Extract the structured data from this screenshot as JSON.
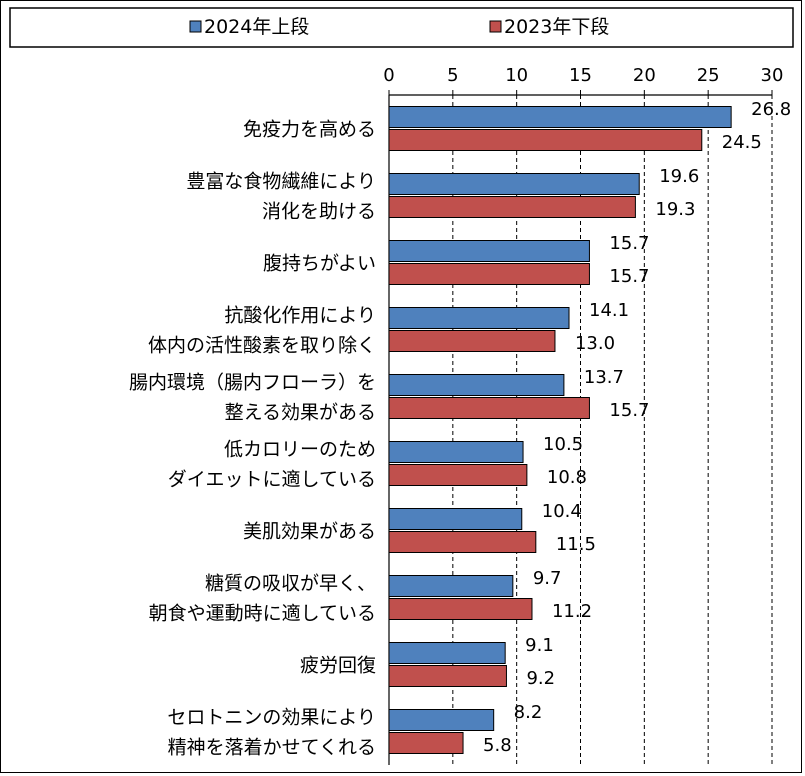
{
  "chart_data": {
    "type": "bar",
    "orientation": "horizontal",
    "xlim": [
      0,
      30
    ],
    "ticks": [
      0,
      5,
      10,
      15,
      20,
      25,
      30
    ],
    "grid": true,
    "legend_position": "top",
    "categories": [
      [
        "免疫力を高める"
      ],
      [
        "豊富な食物繊維により",
        "消化を助ける"
      ],
      [
        "腹持ちがよい"
      ],
      [
        "抗酸化作用により",
        "体内の活性酸素を取り除く"
      ],
      [
        "腸内環境（腸内フローラ）を",
        "整える効果がある"
      ],
      [
        "低カロリーのため",
        "ダイエットに適している"
      ],
      [
        "美肌効果がある"
      ],
      [
        "糖質の吸収が早く、",
        "朝食や運動時に適している"
      ],
      [
        "疲労回復"
      ],
      [
        "セロトニンの効果により",
        "精神を落着かせてくれる"
      ]
    ],
    "series": [
      {
        "name": "2024年上段",
        "color": "#4f81bd",
        "values": [
          26.8,
          19.6,
          15.7,
          14.1,
          13.7,
          10.5,
          10.4,
          9.7,
          9.1,
          8.2
        ]
      },
      {
        "name": "2023年下段",
        "color": "#c0504d",
        "values": [
          24.5,
          19.3,
          15.7,
          13.0,
          15.7,
          10.8,
          11.5,
          11.2,
          9.2,
          5.8
        ]
      }
    ]
  }
}
